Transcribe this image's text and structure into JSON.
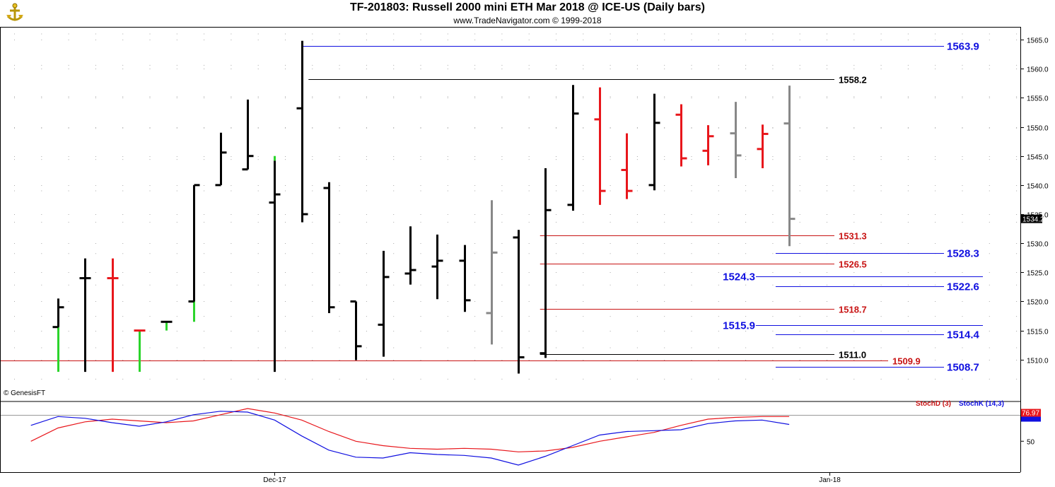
{
  "header": {
    "title": "TF-201803:  Russell 2000 mini ETH Mar 2018 @ ICE-US  (Daily bars)",
    "subtitle": "www.TradeNavigator.com © 1999-2018"
  },
  "watermark": "© GenesisFT",
  "colors": {
    "black": "#000000",
    "red": "#e8161b",
    "green": "#2bd42b",
    "gray": "#888888",
    "blue": "#1010e0",
    "darkred": "#c81414",
    "grid": "#a8a8a8"
  },
  "chart_data": [
    {
      "type": "ohlc",
      "name": "price",
      "ylim": [
        1505.6,
        1567.2
      ],
      "yticks": [
        "1510.0",
        "1515.0",
        "1520.0",
        "1525.0",
        "1530.0",
        "1535.0",
        "1540.0",
        "1545.0",
        "1550.0",
        "1555.0",
        "1560.0",
        "1565.0"
      ],
      "last_price": "1534.2",
      "x_labels": [
        {
          "label": "Dec-17",
          "bar": 8
        },
        {
          "label": "Jan-18",
          "bar": 28.5
        }
      ],
      "bars": [
        {
          "h": 1520.5,
          "l": 1507.9,
          "o": 1515.6,
          "c": 1519.0,
          "color": "black",
          "low_color": "green",
          "split": 1515.6
        },
        {
          "h": 1527.4,
          "l": 1507.9,
          "o": 1524.0,
          "c": 1524.0,
          "color": "black"
        },
        {
          "h": 1527.4,
          "l": 1507.9,
          "o": 1524.0,
          "c": 1524.0,
          "color": "red"
        },
        {
          "h": 1515.0,
          "l": 1507.9,
          "o": 1515.0,
          "c": 1515.0,
          "color": "red",
          "low_color": "green",
          "split": 1515.0
        },
        {
          "h": 1516.5,
          "l": 1515.0,
          "o": 1516.5,
          "c": 1516.5,
          "color": "green",
          "tick_color": "black"
        },
        {
          "h": 1540.0,
          "l": 1516.5,
          "o": 1520.0,
          "c": 1540.0,
          "color": "black",
          "low_color": "green",
          "split": 1520.0
        },
        {
          "h": 1549.0,
          "l": 1540.0,
          "o": 1540.0,
          "c": 1545.6,
          "color": "black"
        },
        {
          "h": 1554.7,
          "l": 1542.7,
          "o": 1542.7,
          "c": 1545.0,
          "color": "black"
        },
        {
          "h": 1545.0,
          "l": 1507.9,
          "o": 1537.0,
          "c": 1538.4,
          "color": "black",
          "high_color": "green",
          "split": 1544.2
        },
        {
          "h": 1564.8,
          "l": 1533.6,
          "o": 1553.2,
          "c": 1535.0,
          "color": "black"
        },
        {
          "h": 1540.5,
          "l": 1518.0,
          "o": 1539.5,
          "c": 1519.0,
          "color": "black"
        },
        {
          "h": 1520.0,
          "l": 1509.9,
          "o": 1520.0,
          "c": 1512.3,
          "color": "black"
        },
        {
          "h": 1528.7,
          "l": 1510.5,
          "o": 1516.0,
          "c": 1524.2,
          "color": "black"
        },
        {
          "h": 1532.9,
          "l": 1522.9,
          "o": 1524.8,
          "c": 1525.4,
          "color": "black"
        },
        {
          "h": 1531.5,
          "l": 1520.4,
          "o": 1526.0,
          "c": 1527.0,
          "color": "black"
        },
        {
          "h": 1529.7,
          "l": 1518.2,
          "o": 1527.0,
          "c": 1520.2,
          "color": "black"
        },
        {
          "h": 1537.4,
          "l": 1512.6,
          "o": 1518.0,
          "c": 1528.4,
          "color": "gray"
        },
        {
          "h": 1532.3,
          "l": 1507.6,
          "o": 1531.0,
          "c": 1510.4,
          "color": "black"
        },
        {
          "h": 1542.9,
          "l": 1510.3,
          "o": 1511.1,
          "c": 1535.7,
          "color": "black"
        },
        {
          "h": 1557.2,
          "l": 1535.6,
          "o": 1536.6,
          "c": 1552.3,
          "color": "black"
        },
        {
          "h": 1556.8,
          "l": 1536.6,
          "o": 1551.3,
          "c": 1539.0,
          "color": "red"
        },
        {
          "h": 1548.9,
          "l": 1537.6,
          "o": 1542.6,
          "c": 1539.0,
          "color": "red"
        },
        {
          "h": 1555.7,
          "l": 1539.1,
          "o": 1540.0,
          "c": 1550.7,
          "color": "black"
        },
        {
          "h": 1553.9,
          "l": 1543.2,
          "o": 1552.1,
          "c": 1544.6,
          "color": "red"
        },
        {
          "h": 1550.3,
          "l": 1543.4,
          "o": 1545.9,
          "c": 1548.4,
          "color": "red"
        },
        {
          "h": 1554.3,
          "l": 1541.2,
          "o": 1548.9,
          "c": 1545.1,
          "color": "gray"
        },
        {
          "h": 1550.4,
          "l": 1542.9,
          "o": 1546.2,
          "c": 1548.8,
          "color": "red"
        },
        {
          "h": 1557.1,
          "l": 1529.5,
          "o": 1550.6,
          "c": 1534.2,
          "color": "gray"
        }
      ],
      "levels": [
        {
          "value": 1563.9,
          "label": "1563.9",
          "color": "blue",
          "from_bar": 9,
          "to": "axis",
          "label_side": "right"
        },
        {
          "value": 1558.2,
          "label": "1558.2",
          "color": "black",
          "from_bar": 9.25,
          "to": "mid",
          "label_side": "right"
        },
        {
          "value": 1531.3,
          "label": "1531.3",
          "color": "darkred",
          "from_bar": 17.8,
          "to": "mid",
          "label_side": "right"
        },
        {
          "value": 1528.3,
          "label": "1528.3",
          "color": "blue",
          "from_bar": 26.5,
          "to": "axis",
          "label_side": "right"
        },
        {
          "value": 1526.5,
          "label": "1526.5",
          "color": "darkred",
          "from_bar": 17.8,
          "to": "mid",
          "label_side": "right"
        },
        {
          "value": 1524.3,
          "label": "1524.3",
          "color": "blue",
          "from_bar": 26.5,
          "to": "mid",
          "label_side": "left"
        },
        {
          "value": 1522.6,
          "label": "1522.6",
          "color": "blue",
          "from_bar": 26.5,
          "to": "axis",
          "label_side": "right"
        },
        {
          "value": 1518.7,
          "label": "1518.7",
          "color": "darkred",
          "from_bar": 17.8,
          "to": "mid",
          "label_side": "right"
        },
        {
          "value": 1515.9,
          "label": "1515.9",
          "color": "blue",
          "from_bar": 26.5,
          "to": "mid",
          "label_side": "left"
        },
        {
          "value": 1514.4,
          "label": "1514.4",
          "color": "blue",
          "from_bar": 26.5,
          "to": "axis",
          "label_side": "right"
        },
        {
          "value": 1511.0,
          "label": "1511.0",
          "color": "black",
          "from_bar": 17.8,
          "to": "mid",
          "label_side": "right"
        },
        {
          "value": 1509.9,
          "label": "1509.9",
          "color": "darkred",
          "from_bar": -1.9,
          "to": "axis_left",
          "label_side": "right"
        },
        {
          "value": 1508.7,
          "label": "1508.7",
          "color": "blue",
          "from_bar": 26.5,
          "to": "axis",
          "label_side": "right"
        }
      ]
    },
    {
      "type": "line",
      "name": "stochastic",
      "ylim": [
        15,
        95
      ],
      "ytick": "50",
      "hline": 80,
      "last_value": "76.97",
      "series": [
        {
          "name": "StochD (3)",
          "color": "red",
          "values": [
            50,
            65,
            72,
            75,
            73,
            71,
            73,
            80,
            87,
            82,
            74,
            61,
            50,
            45,
            42,
            41,
            42,
            41,
            38,
            39,
            43,
            50,
            55,
            60,
            68,
            75,
            77,
            78,
            78
          ]
        },
        {
          "name": "StochK (14,3)",
          "color": "blue",
          "values": [
            68,
            78,
            76,
            71,
            67,
            72,
            80,
            84,
            83,
            74,
            56,
            40,
            32,
            31,
            37,
            35,
            34,
            31,
            23,
            33,
            45,
            57,
            61,
            62,
            63,
            70,
            73,
            74,
            69
          ]
        }
      ],
      "series_x_start": -1
    }
  ]
}
